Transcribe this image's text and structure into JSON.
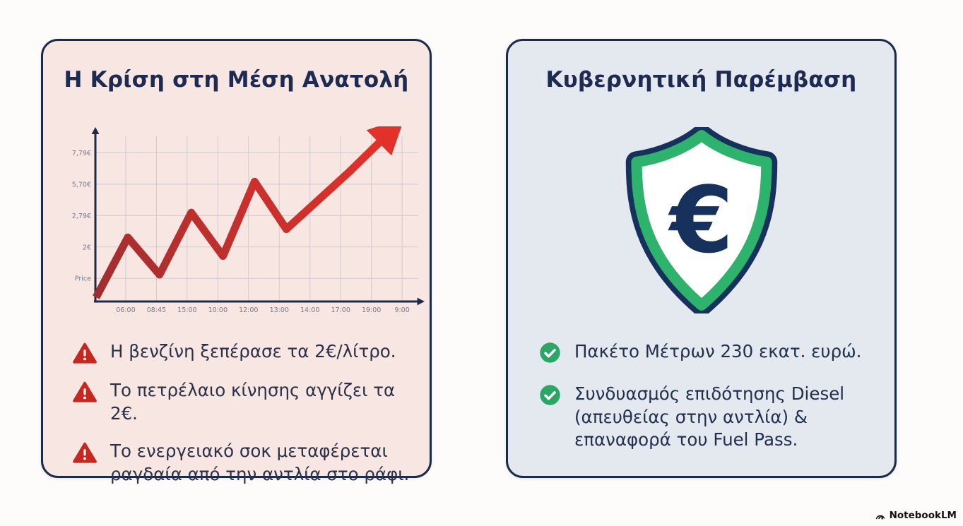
{
  "page": {
    "watermark": "NotebookLM"
  },
  "left_panel": {
    "title": "Η Κρίση στη Μέση Ανατολή",
    "colors": {
      "bg": "#f7e6e2",
      "border": "#1d2b4a",
      "warning_red": "#c6281f"
    },
    "bullets": [
      {
        "icon": "warning-triangle-icon",
        "text": "Η βενζίνη ξεπέρασε τα 2€/λίτρο."
      },
      {
        "icon": "warning-triangle-icon",
        "text": "Το πετρέλαιο κίνησης αγγίζει τα 2€."
      },
      {
        "icon": "warning-triangle-icon",
        "text": "Το ενεργειακό σοκ μεταφέρεται ραγδαία από την αντλία στο ράφι."
      }
    ]
  },
  "chart_data": {
    "type": "line",
    "title": "",
    "xlabel": "",
    "ylabel": "Price",
    "x": [
      "06:00",
      "08:45",
      "15:00",
      "10:00",
      "12:00",
      "13:00",
      "14:00",
      "17:00",
      "19:00",
      "9:00"
    ],
    "y_tick_labels": [
      "7,79€",
      "5,70€",
      "2,79€",
      "2€",
      "Price"
    ],
    "values": [
      0.2,
      3.1,
      1.3,
      4.3,
      2.2,
      5.8,
      3.5,
      4.9,
      6.3,
      7.8
    ],
    "ylim": [
      0,
      8
    ],
    "grid": true,
    "legend": false,
    "annotation": "rising zigzag fuel-price line ending in a large red arrowhead",
    "axis_color": "#1e2a4a",
    "grid_color": "#d2cbce",
    "tick_color": "#777b8e",
    "line_color_start": "#9e2e2e",
    "line_color_end": "#e23128"
  },
  "right_panel": {
    "title": "Κυβερνητική Παρέμβαση",
    "colors": {
      "bg": "#e4e9ef",
      "check_green": "#2aa765"
    },
    "shield": {
      "symbol": "€",
      "outline_color": "#16325c",
      "ring_color": "#2db36b"
    },
    "bullets": [
      {
        "icon": "check-circle-icon",
        "text": "Πακέτο Μέτρων 230 εκατ. ευρώ."
      },
      {
        "icon": "check-circle-icon",
        "text": "Συνδυασμός επιδότησης Diesel (απευθείας στην αντλία) & επαναφορά του Fuel Pass."
      }
    ]
  }
}
